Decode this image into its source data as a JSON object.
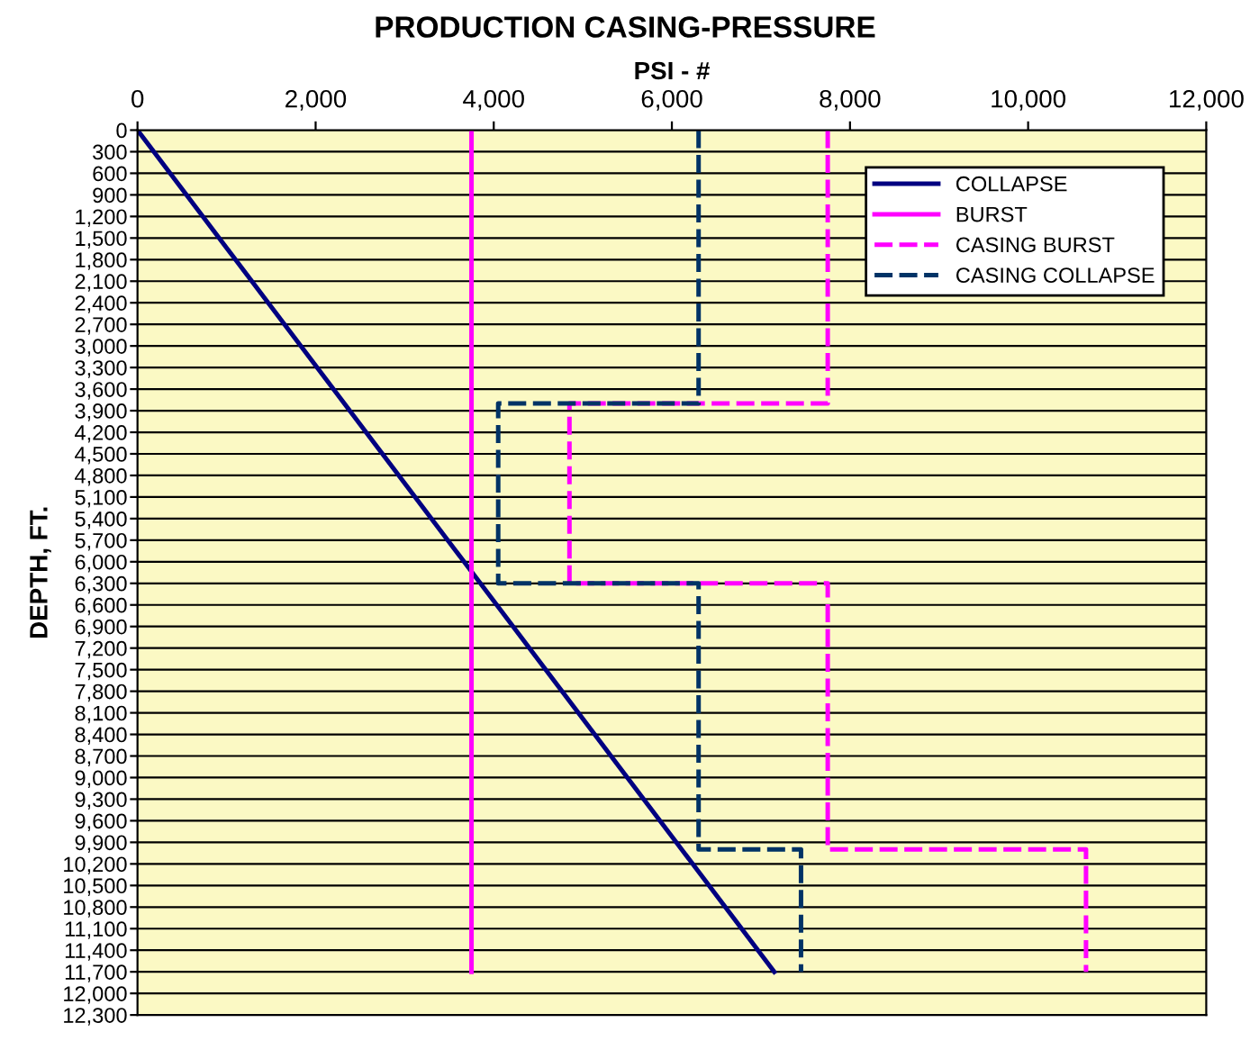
{
  "chart_data": {
    "type": "line",
    "title": "PRODUCTION CASING-PRESSURE",
    "xlabel": "PSI - #",
    "ylabel": "DEPTH, FT.",
    "xlim": [
      0,
      12000
    ],
    "xticks": [
      0,
      {
        "value": 2000,
        "label": "2,000"
      },
      {
        "value": 4000,
        "label": "4,000"
      },
      {
        "value": 6000,
        "label": "6,000"
      },
      {
        "value": 8000,
        "label": "8,000"
      },
      {
        "value": 10000,
        "label": "10,000"
      },
      {
        "value": 12000,
        "label": "12,000"
      }
    ],
    "ylim": [
      12300,
      0
    ],
    "yticks": [
      0,
      300,
      600,
      900,
      {
        "value": 1200,
        "label": "1,200"
      },
      {
        "value": 1500,
        "label": "1,500"
      },
      {
        "value": 1800,
        "label": "1,800"
      },
      {
        "value": 2100,
        "label": "2,100"
      },
      {
        "value": 2400,
        "label": "2,400"
      },
      {
        "value": 2700,
        "label": "2,700"
      },
      {
        "value": 3000,
        "label": "3,000"
      },
      {
        "value": 3300,
        "label": "3,300"
      },
      {
        "value": 3600,
        "label": "3,600"
      },
      {
        "value": 3900,
        "label": "3,900"
      },
      {
        "value": 4200,
        "label": "4,200"
      },
      {
        "value": 4500,
        "label": "4,500"
      },
      {
        "value": 4800,
        "label": "4,800"
      },
      {
        "value": 5100,
        "label": "5,100"
      },
      {
        "value": 5400,
        "label": "5,400"
      },
      {
        "value": 5700,
        "label": "5,700"
      },
      {
        "value": 6000,
        "label": "6,000"
      },
      {
        "value": 6300,
        "label": "6,300"
      },
      {
        "value": 6600,
        "label": "6,600"
      },
      {
        "value": 6900,
        "label": "6,900"
      },
      {
        "value": 7200,
        "label": "7,200"
      },
      {
        "value": 7500,
        "label": "7,500"
      },
      {
        "value": 7800,
        "label": "7,800"
      },
      {
        "value": 8100,
        "label": "8,100"
      },
      {
        "value": 8400,
        "label": "8,400"
      },
      {
        "value": 8700,
        "label": "8,700"
      },
      {
        "value": 9000,
        "label": "9,000"
      },
      {
        "value": 9300,
        "label": "9,300"
      },
      {
        "value": 9600,
        "label": "9,600"
      },
      {
        "value": 9900,
        "label": "9,900"
      },
      {
        "value": 10200,
        "label": "10,200"
      },
      {
        "value": 10500,
        "label": "10,500"
      },
      {
        "value": 10800,
        "label": "10,800"
      },
      {
        "value": 11100,
        "label": "11,100"
      },
      {
        "value": 11400,
        "label": "11,400"
      },
      {
        "value": 11700,
        "label": "11,700"
      },
      {
        "value": 12000,
        "label": "12,000"
      },
      {
        "value": 12300,
        "label": "12,300"
      }
    ],
    "grid": "y",
    "legend": "top right",
    "marker": "none",
    "series": [
      {
        "name": "COLLAPSE",
        "color": "#000080",
        "line_style": "solid",
        "x": [
          0,
          7150
        ],
        "values": [
          0,
          11700
        ]
      },
      {
        "name": "BURST",
        "color": "#ff00ff",
        "line_style": "solid",
        "x": [
          3750,
          3750
        ],
        "values": [
          0,
          11700
        ]
      },
      {
        "name": "CASING BURST",
        "color": "#ff00ff",
        "line_style": "dashed",
        "x": [
          7750,
          7750,
          4850,
          4850,
          7750,
          7750,
          10650,
          10650
        ],
        "values": [
          0,
          3800,
          3800,
          6300,
          6300,
          10000,
          10000,
          11700
        ]
      },
      {
        "name": "CASING COLLAPSE",
        "color": "#003366",
        "line_style": "dashed",
        "x": [
          6300,
          6300,
          4050,
          4050,
          6300,
          6300,
          7450,
          7450
        ],
        "values": [
          0,
          3800,
          3800,
          6300,
          6300,
          10000,
          10000,
          11700
        ]
      }
    ]
  }
}
